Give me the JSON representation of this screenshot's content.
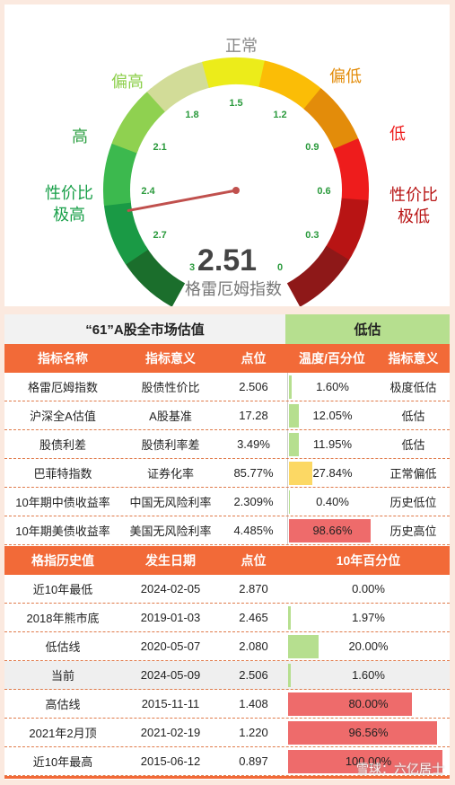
{
  "gauge": {
    "value_text": "2.51",
    "value": 2.506,
    "name": "格雷厄姆指数",
    "min": 0,
    "max": 3,
    "reverse": true,
    "ticks": [
      "3",
      "2.7",
      "2.4",
      "2.1",
      "1.8",
      "1.5",
      "1.2",
      "0.9",
      "0.6",
      "0.3",
      "0"
    ],
    "segment_colors": [
      "#1b6e2c",
      "#1a9a45",
      "#3cb94e",
      "#8fd150",
      "#d2dc98",
      "#ecec1a",
      "#fbbd06",
      "#e38c0a",
      "#ee1c1c",
      "#b81414",
      "#8e1818"
    ],
    "zones": [
      {
        "label": "正常",
        "color": "#888888"
      },
      {
        "label": "偏高",
        "color": "#8ccf4a"
      },
      {
        "label": "偏低",
        "color": "#e38c0a"
      },
      {
        "label": "高",
        "color": "#2ea043"
      },
      {
        "label": "低",
        "color": "#ee1c1c"
      },
      {
        "label": "性价比",
        "label2": "极高",
        "color": "#1aa04a"
      },
      {
        "label": "性价比",
        "label2": "极低",
        "color": "#b81414"
      }
    ],
    "needle_color": "#c0504d"
  },
  "valuation": {
    "title": "“61”A股全市场估值",
    "status": "低估",
    "status_color": "#b6df8f"
  },
  "indicator_table": {
    "headers": [
      "指标名称",
      "指标意义",
      "点位",
      "温度/百分位",
      "指标意义"
    ],
    "rows": [
      {
        "name": "格雷厄姆指数",
        "meaning": "股债性价比",
        "point": "2.506",
        "pct_text": "1.60%",
        "pct": 1.6,
        "bar_color": "#b6df8f",
        "status": "极度低估"
      },
      {
        "name": "沪深全A估值",
        "meaning": "A股基准",
        "point": "17.28",
        "pct_text": "12.05%",
        "pct": 12.05,
        "bar_color": "#b6df8f",
        "status": "低估"
      },
      {
        "name": "股债利差",
        "meaning": "股债利率差",
        "point": "3.49%",
        "pct_text": "11.95%",
        "pct": 11.95,
        "bar_color": "#b6df8f",
        "status": "低估"
      },
      {
        "name": "巴菲特指数",
        "meaning": "证券化率",
        "point": "85.77%",
        "pct_text": "27.84%",
        "pct": 27.84,
        "bar_color": "#fcd864",
        "status": "正常偏低"
      },
      {
        "name": "10年期中债收益率",
        "meaning": "中国无风险利率",
        "point": "2.309%",
        "pct_text": "0.40%",
        "pct": 0.4,
        "bar_color": "#b6df8f",
        "status": "历史低位"
      },
      {
        "name": "10年期美债收益率",
        "meaning": "美国无风险利率",
        "point": "4.485%",
        "pct_text": "98.66%",
        "pct": 98.66,
        "bar_color": "#ee6b6b",
        "status": "历史高位"
      }
    ]
  },
  "history_table": {
    "headers": [
      "格指历史值",
      "发生日期",
      "点位",
      "10年百分位"
    ],
    "rows": [
      {
        "label": "近10年最低",
        "date": "2024-02-05",
        "point": "2.870",
        "pct_text": "0.00%",
        "pct": 0.0,
        "bar_color": "#b6df8f"
      },
      {
        "label": "2018年熊市底",
        "date": "2019-01-03",
        "point": "2.465",
        "pct_text": "1.97%",
        "pct": 1.97,
        "bar_color": "#b6df8f"
      },
      {
        "label": "低估线",
        "date": "2020-05-07",
        "point": "2.080",
        "pct_text": "20.00%",
        "pct": 20.0,
        "bar_color": "#b6df8f"
      },
      {
        "label": "当前",
        "date": "2024-05-09",
        "point": "2.506",
        "pct_text": "1.60%",
        "pct": 1.6,
        "bar_color": "#b6df8f",
        "current": true
      },
      {
        "label": "高估线",
        "date": "2015-11-11",
        "point": "1.408",
        "pct_text": "80.00%",
        "pct": 80.0,
        "bar_color": "#ee6b6b"
      },
      {
        "label": "2021年2月顶",
        "date": "2021-02-19",
        "point": "1.220",
        "pct_text": "96.56%",
        "pct": 96.56,
        "bar_color": "#ee6b6b"
      },
      {
        "label": "近10年最高",
        "date": "2015-06-12",
        "point": "0.897",
        "pct_text": "100.00%",
        "pct": 100.0,
        "bar_color": "#ee6b6b"
      }
    ]
  },
  "watermark": "雪球：六亿居士",
  "chart_data": [
    {
      "type": "gauge",
      "title": "格雷厄姆指数",
      "value": 2.506,
      "display": "2.51",
      "range": [
        3,
        0
      ],
      "ticks": [
        3,
        2.7,
        2.4,
        2.1,
        1.8,
        1.5,
        1.2,
        0.9,
        0.6,
        0.3,
        0
      ]
    },
    {
      "type": "table",
      "title": "“61”A股全市场估值",
      "columns": [
        "指标名称",
        "指标意义",
        "点位",
        "温度/百分位",
        "指标意义"
      ],
      "rows": [
        [
          "格雷厄姆指数",
          "股债性价比",
          "2.506",
          "1.60%",
          "极度低估"
        ],
        [
          "沪深全A估值",
          "A股基准",
          "17.28",
          "12.05%",
          "低估"
        ],
        [
          "股债利差",
          "股债利率差",
          "3.49%",
          "11.95%",
          "低估"
        ],
        [
          "巴菲特指数",
          "证券化率",
          "85.77%",
          "27.84%",
          "正常偏低"
        ],
        [
          "10年期中债收益率",
          "中国无风险利率",
          "2.309%",
          "0.40%",
          "历史低位"
        ],
        [
          "10年期美债收益率",
          "美国无风险利率",
          "4.485%",
          "98.66%",
          "历史高位"
        ]
      ]
    },
    {
      "type": "table",
      "columns": [
        "格指历史值",
        "发生日期",
        "点位",
        "10年百分位"
      ],
      "rows": [
        [
          "近10年最低",
          "2024-02-05",
          "2.870",
          "0.00%"
        ],
        [
          "2018年熊市底",
          "2019-01-03",
          "2.465",
          "1.97%"
        ],
        [
          "低估线",
          "2020-05-07",
          "2.080",
          "20.00%"
        ],
        [
          "当前",
          "2024-05-09",
          "2.506",
          "1.60%"
        ],
        [
          "高估线",
          "2015-11-11",
          "1.408",
          "80.00%"
        ],
        [
          "2021年2月顶",
          "2021-02-19",
          "1.220",
          "96.56%"
        ],
        [
          "近10年最高",
          "2015-06-12",
          "0.897",
          "100.00%"
        ]
      ]
    }
  ]
}
